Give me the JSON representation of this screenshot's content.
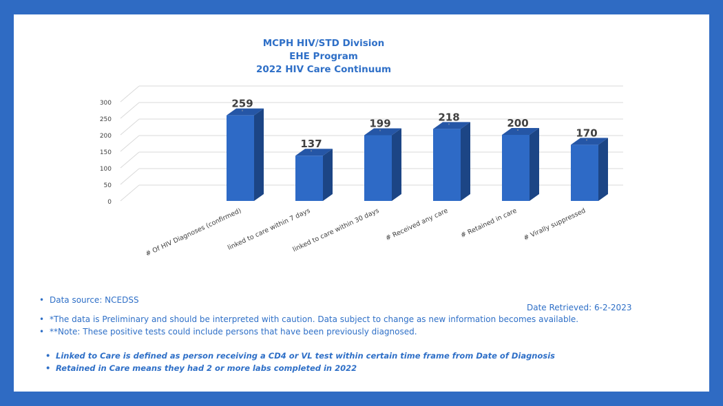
{
  "chart_data": {
    "type": "bar",
    "title": [
      "MCPH HIV/STD Division",
      "EHE Program",
      "2022 HIV Care Continuum"
    ],
    "categories": [
      "# Of HIV Diagnoses (confirmed)",
      "linked to care within 7 days",
      "linked to care within 30 days",
      "# Received any care",
      "# Retained in care",
      "# Virally suppressed"
    ],
    "values": [
      259,
      137,
      199,
      218,
      200,
      170
    ],
    "data_labels": [
      "259",
      "137",
      "199",
      "218",
      "200",
      "170"
    ],
    "y_ticks": [
      "0",
      "50",
      "100",
      "150",
      "200",
      "250",
      "300"
    ],
    "ylim": [
      0,
      300
    ],
    "grid": true,
    "style": "3d-column",
    "bar_color": "#2E6AC6",
    "bar_top_color": "#2556A6",
    "bar_side_color": "#1C4585"
  },
  "notes": {
    "data_source": "Data source: NCEDSS",
    "preliminary": "*The data is Preliminary and should be interpreted with caution. Data subject to change as new information becomes available.",
    "note": "**Note: These positive tests could include persons that have been previously diagnosed.",
    "linked_def": "Linked to Care is defined as person receiving a CD4 or VL test within certain time frame from Date of Diagnosis",
    "retained_def": "Retained in Care means they had 2 or more labs completed in 2022",
    "bullet": "•"
  },
  "date_retrieved": "Date Retrieved: 6-2-2023",
  "colors": {
    "frame": "#2F6BC3",
    "text_blue": "#2E6FC7",
    "label_dark": "#404040",
    "grid": "#D9D9D9"
  }
}
